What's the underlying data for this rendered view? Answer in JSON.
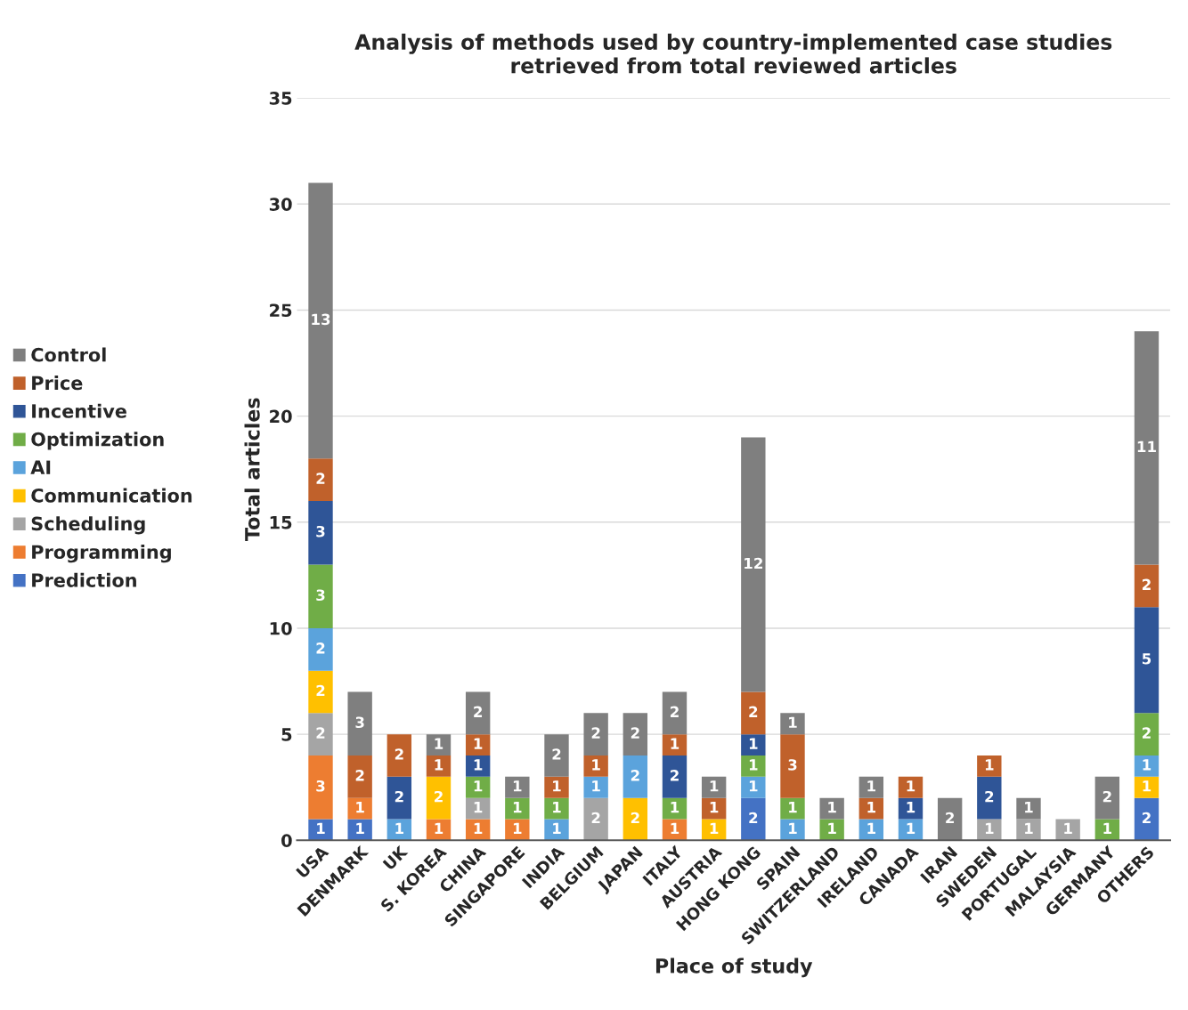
{
  "chart_data": {
    "type": "bar",
    "title": "Analysis of methods used by country-implemented case studies\nretrieved from total reviewed articles",
    "xlabel": "Place of study",
    "ylabel": "Total articles",
    "categories": [
      "USA",
      "DENMARK",
      "UK",
      "S. KOREA",
      "CHINA",
      "SINGAPORE",
      "INDIA",
      "BELGIUM",
      "JAPAN",
      "ITALY",
      "AUSTRIA",
      "HONG KONG",
      "SPAIN",
      "SWITZERLAND",
      "IRELAND",
      "CANADA",
      "IRAN",
      "SWEDEN",
      "PORTUGAL",
      "MALAYSIA",
      "GERMANY",
      "OTHERS"
    ],
    "stacked": true,
    "data_labels": true,
    "grid": "y",
    "legend": "left",
    "ylim": [
      0,
      35
    ],
    "yticks": [
      0,
      5,
      10,
      15,
      20,
      25,
      30,
      35
    ],
    "series": [
      {
        "name": "Prediction",
        "color": "#4472c4",
        "values": [
          1,
          1,
          null,
          null,
          null,
          null,
          null,
          null,
          null,
          null,
          null,
          2,
          null,
          null,
          null,
          null,
          null,
          null,
          null,
          null,
          null,
          2
        ]
      },
      {
        "name": "Programming",
        "color": "#ed7d31",
        "values": [
          3,
          1,
          null,
          1,
          1,
          1,
          null,
          null,
          null,
          1,
          null,
          null,
          null,
          null,
          null,
          null,
          null,
          null,
          null,
          null,
          null,
          null
        ]
      },
      {
        "name": "Scheduling",
        "color": "#a5a5a5",
        "values": [
          2,
          null,
          null,
          null,
          1,
          null,
          null,
          2,
          null,
          null,
          null,
          null,
          null,
          null,
          null,
          null,
          null,
          1,
          1,
          1,
          null,
          null
        ]
      },
      {
        "name": "Communication",
        "color": "#ffc000",
        "values": [
          2,
          null,
          null,
          2,
          null,
          null,
          null,
          null,
          2,
          null,
          1,
          null,
          null,
          null,
          null,
          null,
          null,
          null,
          null,
          null,
          null,
          1
        ]
      },
      {
        "name": "AI",
        "color": "#5ba3dc",
        "values": [
          2,
          null,
          1,
          null,
          null,
          null,
          1,
          1,
          2,
          null,
          null,
          1,
          1,
          null,
          1,
          1,
          null,
          null,
          null,
          null,
          null,
          1
        ]
      },
      {
        "name": "Optimization",
        "color": "#70ad47",
        "values": [
          3,
          null,
          null,
          null,
          1,
          1,
          1,
          null,
          null,
          1,
          null,
          1,
          1,
          1,
          null,
          null,
          null,
          null,
          null,
          null,
          1,
          2
        ]
      },
      {
        "name": "Incentive",
        "color": "#2f5597",
        "values": [
          3,
          null,
          2,
          null,
          1,
          null,
          null,
          null,
          null,
          2,
          null,
          1,
          null,
          null,
          null,
          1,
          null,
          2,
          null,
          null,
          null,
          5
        ]
      },
      {
        "name": "Price",
        "color": "#c0612b",
        "values": [
          2,
          2,
          2,
          1,
          1,
          null,
          1,
          1,
          null,
          1,
          1,
          2,
          3,
          null,
          1,
          1,
          null,
          1,
          null,
          null,
          null,
          2
        ]
      },
      {
        "name": "Control",
        "color": "#7f7f7f",
        "values": [
          13,
          3,
          null,
          1,
          2,
          1,
          2,
          2,
          2,
          2,
          1,
          12,
          1,
          1,
          1,
          null,
          2,
          null,
          1,
          null,
          2,
          11
        ]
      }
    ]
  }
}
